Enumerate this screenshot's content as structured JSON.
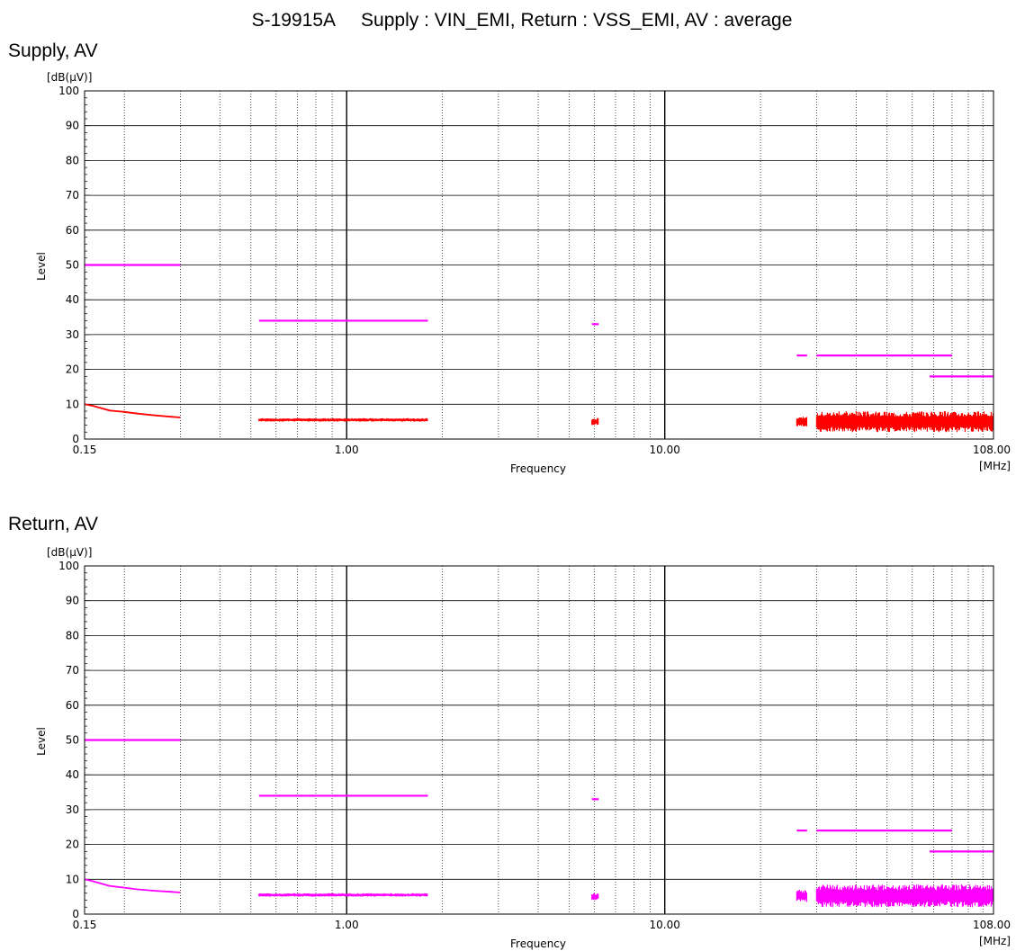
{
  "page_title": "S-19915A     Supply : VIN_EMI, Return : VSS_EMI, AV : average",
  "colors": {
    "limit": "#ff00ff",
    "supply_trace": "#ff0000",
    "return_trace": "#ff00ff",
    "grid_major": "#000000",
    "grid_minor": "#000000"
  },
  "chart_data": [
    {
      "type": "line",
      "title": "Supply, AV",
      "ylabel": "Level",
      "yunit": "[dB(µV)]",
      "xlabel": "Frequency",
      "xunit": "[MHz]",
      "xscale": "log",
      "xlim": [
        0.15,
        108
      ],
      "ylim": [
        0,
        100
      ],
      "x_tick_labels": [
        "0.15",
        "1.00",
        "10.00",
        "108.00"
      ],
      "y_tick_labels": [
        "0",
        "10",
        "20",
        "30",
        "40",
        "50",
        "60",
        "70",
        "80",
        "90",
        "100"
      ],
      "grid": true,
      "limit_lines": [
        {
          "x": [
            0.15,
            0.3
          ],
          "y": 50
        },
        {
          "x": [
            0.53,
            1.8
          ],
          "y": 34
        },
        {
          "x": [
            5.9,
            6.2
          ],
          "y": 33
        },
        {
          "x": [
            26,
            28
          ],
          "y": 24
        },
        {
          "x": [
            30,
            80
          ],
          "y": 24
        },
        {
          "x": [
            68,
            108
          ],
          "y": 18
        }
      ],
      "series": [
        {
          "trace": "curve",
          "x": [
            0.15,
            0.16,
            0.17,
            0.18,
            0.2,
            0.22,
            0.25,
            0.28,
            0.3
          ],
          "y": [
            10,
            9.5,
            8.8,
            8.2,
            7.8,
            7.3,
            6.8,
            6.4,
            6.2
          ]
        },
        {
          "trace": "band",
          "x": [
            0.53,
            1.8
          ],
          "ymin": 5,
          "ymax": 6
        },
        {
          "trace": "band",
          "x": [
            5.9,
            6.2
          ],
          "ymin": 4,
          "ymax": 6
        },
        {
          "trace": "band",
          "x": [
            26,
            28
          ],
          "ymin": 3.5,
          "ymax": 6.5
        },
        {
          "trace": "band",
          "x": [
            30,
            108
          ],
          "ymin": 2,
          "ymax": 8
        }
      ]
    },
    {
      "type": "line",
      "title": "Return, AV",
      "ylabel": "Level",
      "yunit": "[dB(µV)]",
      "xlabel": "Frequency",
      "xunit": "[MHz]",
      "xscale": "log",
      "xlim": [
        0.15,
        108
      ],
      "ylim": [
        0,
        100
      ],
      "x_tick_labels": [
        "0.15",
        "1.00",
        "10.00",
        "108.00"
      ],
      "y_tick_labels": [
        "0",
        "10",
        "20",
        "30",
        "40",
        "50",
        "60",
        "70",
        "80",
        "90",
        "100"
      ],
      "grid": true,
      "limit_lines": [
        {
          "x": [
            0.15,
            0.3
          ],
          "y": 50
        },
        {
          "x": [
            0.53,
            1.8
          ],
          "y": 34
        },
        {
          "x": [
            5.9,
            6.2
          ],
          "y": 33
        },
        {
          "x": [
            26,
            28
          ],
          "y": 24
        },
        {
          "x": [
            30,
            80
          ],
          "y": 24
        },
        {
          "x": [
            68,
            108
          ],
          "y": 18
        }
      ],
      "series": [
        {
          "trace": "curve",
          "x": [
            0.15,
            0.16,
            0.17,
            0.18,
            0.2,
            0.22,
            0.25,
            0.28,
            0.3
          ],
          "y": [
            10,
            9.4,
            8.7,
            8.1,
            7.6,
            7.1,
            6.7,
            6.4,
            6.2
          ]
        },
        {
          "trace": "band",
          "x": [
            0.53,
            1.8
          ],
          "ymin": 5,
          "ymax": 6
        },
        {
          "trace": "band",
          "x": [
            5.9,
            6.2
          ],
          "ymin": 4,
          "ymax": 6
        },
        {
          "trace": "band",
          "x": [
            26,
            28
          ],
          "ymin": 3.5,
          "ymax": 7
        },
        {
          "trace": "band",
          "x": [
            30,
            108
          ],
          "ymin": 2,
          "ymax": 8.5
        }
      ]
    }
  ]
}
